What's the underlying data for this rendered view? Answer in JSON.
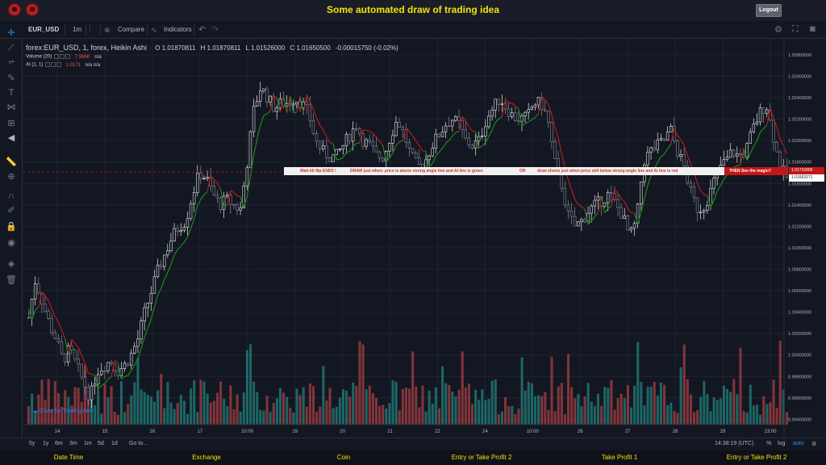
{
  "app": {
    "title": "Some automated draw of trading idea",
    "logout_label": "Logout"
  },
  "toolbar": {
    "symbol": "EUR_USD",
    "interval": "1m",
    "compare_label": "Compare",
    "indicators_label": "Indicators"
  },
  "legend": {
    "series_title": "forex:EUR_USD, 1, forex, Heikin Ashi",
    "open": "O 1.01870811",
    "high": "H 1.01870811",
    "low": "L 1.01526000",
    "close": "C 1.01650500",
    "change": "-0.00015750 (-0.02%)"
  },
  "indicators": [
    {
      "name": "Volume (20)",
      "value": "7.966K",
      "extra": "n/a"
    },
    {
      "name": "AI (1, 1)",
      "value": "1.0171",
      "extra": "n/a  n/a"
    }
  ],
  "banner": {
    "part1": "Wait till flip ENDS  !",
    "part2": "DRAW just when:  price is above strong angle line and AI line is green",
    "part3": "OR",
    "part4": "draw shorts just when price still below strong angle line and AI line is red",
    "end": "THEN See the magic!!"
  },
  "price_tags": {
    "current": "1.01715806",
    "close": "1.01663171"
  },
  "watermark": "Chart by TradingView",
  "bottom": {
    "ranges": [
      "5y",
      "1y",
      "6m",
      "3m",
      "1m",
      "5d",
      "1d"
    ],
    "goto": "Go to...",
    "time": "14:38:19 (UTC)",
    "pct": "%",
    "log": "log",
    "auto": "auto"
  },
  "footer": {
    "items": [
      "Date Time",
      "Exchange",
      "Coin",
      "Entry or Take Profit 2",
      "Take Profit 1",
      "Entry or Take Profit 2"
    ]
  },
  "colors": {
    "up": "#26a69a",
    "down": "#ef5350",
    "ai_green": "#1b8a1b",
    "ai_red": "#b71c1c",
    "title": "#f0e40a"
  },
  "chart_data": {
    "type": "candlestick",
    "style": "Heikin Ashi",
    "symbol": "forex:EUR_USD",
    "interval": "1",
    "y_ticks": [
      "1.02800000",
      "1.02600000",
      "1.02400000",
      "1.02200000",
      "1.02000000",
      "1.01800000",
      "1.01600000",
      "1.01400000",
      "1.01200000",
      "1.01000000",
      "1.00800000",
      "1.00600000",
      "1.00400000",
      "1.00200000",
      "1.00000000",
      "0.99800000",
      "0.99600000",
      "0.99400000"
    ],
    "x_ticks": [
      "14",
      "15",
      "16",
      "17",
      "10:00",
      "19",
      "20",
      "21",
      "22",
      "24",
      "10:00",
      "26",
      "27",
      "28",
      "29",
      "13:00"
    ],
    "ylim": [
      0.9935,
      1.0295
    ],
    "grid": true,
    "price_path": [
      1.0035,
      1.007,
      1.005,
      1.003,
      1.0015,
      0.9995,
      1.0005,
      0.999,
      0.9975,
      0.996,
      0.9985,
      0.999,
      0.9995,
      0.9985,
      0.999,
      1.0,
      1.0015,
      1.004,
      1.006,
      1.008,
      1.0095,
      1.011,
      1.012,
      1.0125,
      1.015,
      1.017,
      1.0165,
      1.015,
      1.014,
      1.0145,
      1.014,
      1.0135,
      1.018,
      1.023,
      1.025,
      1.024,
      1.023,
      1.0235,
      1.0235,
      1.024,
      1.0235,
      1.0225,
      1.02,
      1.019,
      1.0185,
      1.0185,
      1.0195,
      1.0205,
      1.0215,
      1.02,
      1.0195,
      1.0185,
      1.0185,
      1.0205,
      1.022,
      1.0205,
      1.0185,
      1.0175,
      1.018,
      1.0195,
      1.0205,
      1.0215,
      1.022,
      1.0215,
      1.02,
      1.0195,
      1.02,
      1.022,
      1.023,
      1.024,
      1.023,
      1.0222,
      1.022,
      1.0222,
      1.0235,
      1.0235,
      1.022,
      1.018,
      1.016,
      1.013,
      1.012,
      1.0125,
      1.0135,
      1.014,
      1.0145,
      1.015,
      1.014,
      1.013,
      1.011,
      1.0125,
      1.018,
      1.019,
      1.0195,
      1.02,
      1.021,
      1.019,
      1.0175,
      1.015,
      1.0135,
      1.014,
      1.0155,
      1.0175,
      1.018,
      1.019,
      1.0185,
      1.019,
      1.021,
      1.0225,
      1.0235,
      1.0205,
      1.0175,
      1.0166
    ],
    "ai_line": "step line following price, green when trending up, red when trending down",
    "volume": "green/red histogram along the bottom"
  }
}
